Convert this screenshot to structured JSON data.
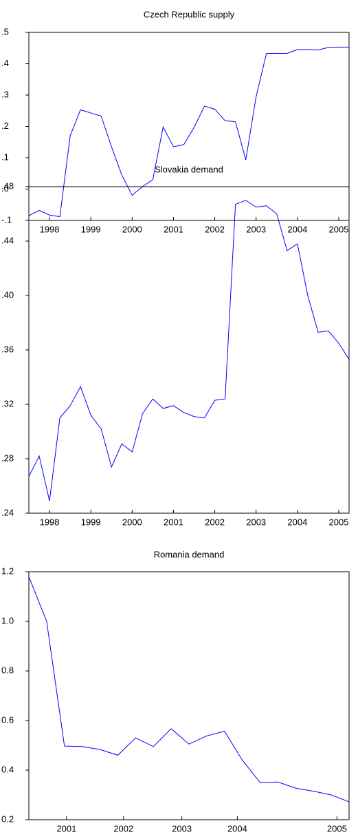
{
  "chart_data": [
    {
      "type": "line",
      "title": "Czech Republic supply",
      "x": [
        1998,
        1998.25,
        1998.5,
        1998.75,
        1999,
        1999.25,
        1999.5,
        1999.75,
        2000,
        2000.25,
        2000.5,
        2000.75,
        2001,
        2001.25,
        2001.5,
        2001.75,
        2002,
        2002.25,
        2002.5,
        2002.75,
        2003,
        2003.25,
        2003.5,
        2003.75,
        2004,
        2004.25,
        2004.5,
        2004.75,
        2005,
        2005.25,
        2005.5,
        2005.75
      ],
      "series": [
        {
          "color": "#0000ff",
          "values": [
            -0.085,
            -0.068,
            -0.083,
            -0.088,
            0.17,
            0.253,
            0.243,
            0.233,
            0.135,
            0.045,
            -0.02,
            0.008,
            0.03,
            0.198,
            0.135,
            0.142,
            0.197,
            0.265,
            0.255,
            0.218,
            0.215,
            0.093,
            0.295,
            0.433,
            0.433,
            0.433,
            0.445,
            0.445,
            0.444,
            0.452,
            0.453,
            0.453
          ]
        }
      ],
      "xlim": [
        1998,
        2005.75
      ],
      "xticks": [
        {
          "value": 1998.5,
          "label": "1998"
        },
        {
          "value": 1999.5,
          "label": "1999"
        },
        {
          "value": 2000.5,
          "label": "2000"
        },
        {
          "value": 2001.5,
          "label": "2001"
        },
        {
          "value": 2002.5,
          "label": "2002"
        },
        {
          "value": 2003.5,
          "label": "2003"
        },
        {
          "value": 2004.5,
          "label": "2004"
        },
        {
          "value": 2005.5,
          "label": "2005"
        }
      ],
      "ylim": [
        -0.1,
        0.5
      ],
      "yticks": [
        {
          "value": -0.1,
          "label": "-.1"
        },
        {
          "value": 0,
          "label": ".0"
        },
        {
          "value": 0.1,
          "label": ".1"
        },
        {
          "value": 0.2,
          "label": ".2"
        },
        {
          "value": 0.3,
          "label": ".3"
        },
        {
          "value": 0.4,
          "label": ".4"
        },
        {
          "value": 0.5,
          "label": ".5"
        }
      ]
    },
    {
      "type": "line",
      "title": "Slovakia demand",
      "x": [
        1998,
        1998.25,
        1998.5,
        1998.75,
        1999,
        1999.25,
        1999.5,
        1999.75,
        2000,
        2000.25,
        2000.5,
        2000.75,
        2001,
        2001.25,
        2001.5,
        2001.75,
        2002,
        2002.25,
        2002.5,
        2002.75,
        2003,
        2003.25,
        2003.5,
        2003.75,
        2004,
        2004.25,
        2004.5,
        2004.75,
        2005,
        2005.25,
        2005.5,
        2005.75
      ],
      "series": [
        {
          "color": "#0000ff",
          "values": [
            0.267,
            0.282,
            0.249,
            0.31,
            0.319,
            0.333,
            0.312,
            0.302,
            0.274,
            0.291,
            0.285,
            0.313,
            0.324,
            0.317,
            0.319,
            0.314,
            0.311,
            0.31,
            0.323,
            0.324,
            0.467,
            0.47,
            0.465,
            0.466,
            0.46,
            0.433,
            0.438,
            0.4,
            0.373,
            0.374,
            0.365,
            0.353
          ]
        }
      ],
      "xlim": [
        1998,
        2005.75
      ],
      "xticks": [
        {
          "value": 1998.5,
          "label": "1998"
        },
        {
          "value": 1999.5,
          "label": "1999"
        },
        {
          "value": 2000.5,
          "label": "2000"
        },
        {
          "value": 2001.5,
          "label": "2001"
        },
        {
          "value": 2002.5,
          "label": "2002"
        },
        {
          "value": 2003.5,
          "label": "2003"
        },
        {
          "value": 2004.5,
          "label": "2004"
        },
        {
          "value": 2005.5,
          "label": "2005"
        }
      ],
      "ylim": [
        0.24,
        0.48
      ],
      "yticks": [
        {
          "value": 0.24,
          "label": ".24"
        },
        {
          "value": 0.28,
          "label": ".28"
        },
        {
          "value": 0.32,
          "label": ".32"
        },
        {
          "value": 0.36,
          "label": ".36"
        },
        {
          "value": 0.4,
          "label": ".40"
        },
        {
          "value": 0.44,
          "label": ".44"
        },
        {
          "value": 0.48,
          "label": ".48"
        }
      ]
    },
    {
      "type": "line",
      "title": "Romania demand",
      "x": [
        2000.75,
        2001,
        2001.25,
        2001.5,
        2001.75,
        2002,
        2002.25,
        2002.5,
        2002.75,
        2003,
        2003.25,
        2003.5,
        2003.75,
        2004,
        2004.25,
        2004.5,
        2004.75,
        2005,
        2005.25
      ],
      "series": [
        {
          "color": "#0000ff",
          "values": [
            1.18,
            1.0,
            0.497,
            0.495,
            0.483,
            0.46,
            0.53,
            0.495,
            0.567,
            0.505,
            0.538,
            0.557,
            0.44,
            0.35,
            0.352,
            0.327,
            0.315,
            0.3,
            0.272
          ]
        }
      ],
      "xlim": [
        2000.75,
        2005.25
      ],
      "xticks": [
        {
          "value": 2001.28,
          "label": "2001"
        },
        {
          "value": 2002.08,
          "label": "2002"
        },
        {
          "value": 2002.9,
          "label": "2003"
        },
        {
          "value": 2003.68,
          "label": "2004"
        },
        {
          "value": 2005.08,
          "label": "2005"
        }
      ],
      "ylim": [
        0.2,
        1.2
      ],
      "yticks": [
        0.2,
        0.4,
        0.6,
        0.8,
        {
          "value": 1.0,
          "label": "1.0"
        },
        1.2
      ]
    }
  ]
}
